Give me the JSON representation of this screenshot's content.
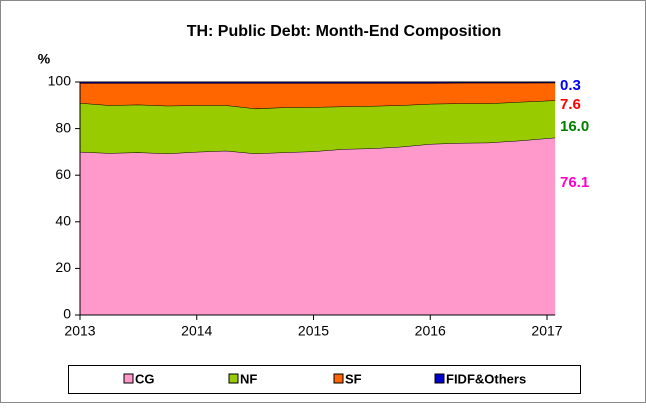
{
  "chart_data": {
    "type": "stacked_area",
    "title": "TH: Public Debt: Month-End Composition",
    "y_label": "%",
    "x": [
      2013,
      2013.25,
      2013.5,
      2013.75,
      2014,
      2014.25,
      2014.5,
      2014.75,
      2015,
      2015.25,
      2015.5,
      2015.75,
      2016,
      2016.25,
      2016.5,
      2016.75,
      2017.07
    ],
    "xlim": [
      2013,
      2017.07
    ],
    "xticks": [
      2013,
      2014,
      2015,
      2016,
      2017
    ],
    "ylim": [
      0,
      100
    ],
    "yticks": [
      0,
      20,
      40,
      60,
      80,
      100
    ],
    "series": [
      {
        "name": "CG",
        "color": "#ff99cc",
        "label_color": "#ff00cc",
        "values": [
          70,
          69.5,
          69.8,
          69.3,
          70,
          70.5,
          69.3,
          69.8,
          70.2,
          71.2,
          71.5,
          72.2,
          73.4,
          73.8,
          74,
          74.8,
          76.1
        ],
        "value_labels": [
          null,
          null,
          null,
          null,
          null,
          null,
          null,
          null,
          null,
          null,
          null,
          null,
          null,
          null,
          null,
          null,
          "76.1"
        ]
      },
      {
        "name": "NF",
        "color": "#99cc00",
        "label_color": "#008000",
        "values": [
          21,
          20.5,
          20.5,
          20.5,
          20,
          19.5,
          19.3,
          19.3,
          19,
          18.3,
          18.2,
          17.8,
          17.2,
          17,
          16.8,
          16.6,
          16
        ],
        "value_labels": [
          null,
          null,
          null,
          null,
          null,
          null,
          null,
          null,
          null,
          null,
          null,
          null,
          null,
          null,
          null,
          null,
          "16.0"
        ]
      },
      {
        "name": "SF",
        "color": "#ff6600",
        "label_color": "#ff0000",
        "values": [
          8.5,
          9.5,
          9.2,
          9.7,
          9.5,
          9.5,
          10.9,
          10.4,
          10.3,
          10,
          9.8,
          9.5,
          8.9,
          8.8,
          8.8,
          8.2,
          7.6
        ],
        "value_labels": [
          null,
          null,
          null,
          null,
          null,
          null,
          null,
          null,
          null,
          null,
          null,
          null,
          null,
          null,
          null,
          null,
          "7.6"
        ]
      },
      {
        "name": "FIDF&Others",
        "color": "#0000cc",
        "label_color": "#0000ff",
        "values": [
          0.5,
          0.5,
          0.5,
          0.5,
          0.5,
          0.5,
          0.5,
          0.5,
          0.5,
          0.5,
          0.5,
          0.5,
          0.5,
          0.4,
          0.4,
          0.4,
          0.3
        ],
        "value_labels": [
          null,
          null,
          null,
          null,
          null,
          null,
          null,
          null,
          null,
          null,
          null,
          null,
          null,
          null,
          null,
          null,
          "0.3"
        ]
      }
    ]
  }
}
